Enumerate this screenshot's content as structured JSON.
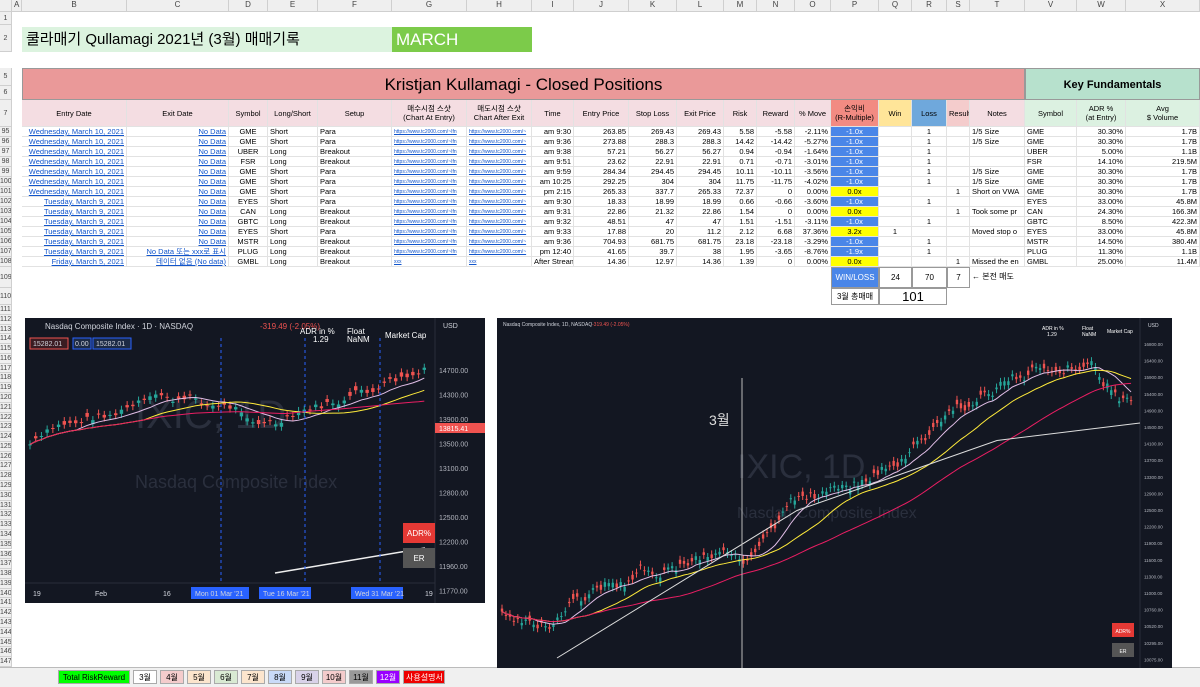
{
  "sheet": {
    "column_letters": [
      "A",
      "B",
      "C",
      "D",
      "E",
      "F",
      "G",
      "H",
      "I",
      "J",
      "K",
      "L",
      "M",
      "N",
      "O",
      "P",
      "Q",
      "R",
      "S",
      "T",
      "V",
      "W",
      "X"
    ],
    "row_numbers": [
      "1",
      "2",
      "5",
      "6",
      "7",
      "95",
      "96",
      "97",
      "98",
      "99",
      "100",
      "101",
      "102",
      "103",
      "104",
      "105",
      "106",
      "107",
      "108",
      "109",
      "110",
      "111",
      "112",
      "113",
      "114",
      "115",
      "116",
      "117",
      "118",
      "119",
      "120",
      "121",
      "122",
      "123",
      "124",
      "125",
      "126",
      "127",
      "128",
      "129",
      "130",
      "131",
      "132",
      "133",
      "134",
      "135",
      "136",
      "137",
      "138",
      "139",
      "140",
      "141",
      "142",
      "143",
      "144",
      "145",
      "146",
      "147"
    ],
    "title": "쿨라매기 Qullamagi 2021년 (3월) 매매기록",
    "month": "MARCH",
    "table_title": "Kristjan Kullamagi - Closed Positions",
    "fundamentals_title": "Key Fundamentals",
    "headers": [
      [
        "Entry Date"
      ],
      [
        "Exit Date"
      ],
      [
        "Symbol"
      ],
      [
        "Long/Short"
      ],
      [
        "Setup"
      ],
      [
        "매수시점 스샷",
        "(Chart At Entry)"
      ],
      [
        "매도시점 스샷",
        "Chart After Exit"
      ],
      [
        "Time"
      ],
      [
        "Entry Price"
      ],
      [
        "Stop Loss"
      ],
      [
        "Exit Price"
      ],
      [
        "Risk"
      ],
      [
        "Reward"
      ],
      [
        "% Move"
      ],
      [
        "손익비",
        "(R-Multiple)"
      ],
      [
        "Win"
      ],
      [
        "Loss"
      ],
      [
        "Result"
      ],
      [
        "Notes"
      ],
      [
        "Symbol"
      ],
      [
        "ADR %",
        "(at Entry)"
      ],
      [
        "Avg",
        "$ Volume"
      ]
    ],
    "rows": [
      {
        "entry": "Wednesday, March 10, 2021",
        "exit": "No Data",
        "symbol": "GME",
        "side": "Short",
        "setup": "Para",
        "shot_entry": "https://www.tc2000.com/~Ifn",
        "shot_exit": "https://www.tc2000.com/~",
        "time": "am 9:30",
        "entry_price": "263.85",
        "stop": "269.43",
        "exit_price": "269.43",
        "risk": "5.58",
        "reward": "-5.58",
        "move": "-2.11%",
        "r": "-1.0x",
        "loss": "1",
        "notes": "1/5 Size",
        "f_symbol": "GME",
        "adr": "30.30%",
        "volume": "1.7B"
      },
      {
        "entry": "Wednesday, March 10, 2021",
        "exit": "No Data",
        "symbol": "GME",
        "side": "Short",
        "setup": "Para",
        "shot_entry": "https://www.tc2000.com/~Ifn",
        "shot_exit": "https://www.tc2000.com/~",
        "time": "am 9:36",
        "entry_price": "273.88",
        "stop": "288.3",
        "exit_price": "288.3",
        "risk": "14.42",
        "reward": "-14.42",
        "move": "-5.27%",
        "r": "-1.0x",
        "loss": "1",
        "notes": "1/5 Size",
        "f_symbol": "GME",
        "adr": "30.30%",
        "volume": "1.7B"
      },
      {
        "entry": "Wednesday, March 10, 2021",
        "exit": "No Data",
        "symbol": "UBER",
        "side": "Long",
        "setup": "Breakout",
        "shot_entry": "https://www.tc2000.com/~Ifn",
        "shot_exit": "https://www.tc2000.com/~",
        "time": "am 9:38",
        "entry_price": "57.21",
        "stop": "56.27",
        "exit_price": "56.27",
        "risk": "0.94",
        "reward": "-0.94",
        "move": "-1.64%",
        "r": "-1.0x",
        "loss": "1",
        "f_symbol": "UBER",
        "adr": "5.00%",
        "volume": "1.1B"
      },
      {
        "entry": "Wednesday, March 10, 2021",
        "exit": "No Data",
        "symbol": "FSR",
        "side": "Long",
        "setup": "Breakout",
        "shot_entry": "https://www.tc2000.com/~Ifn",
        "shot_exit": "https://www.tc2000.com/~",
        "time": "am 9:51",
        "entry_price": "23.62",
        "stop": "22.91",
        "exit_price": "22.91",
        "risk": "0.71",
        "reward": "-0.71",
        "move": "-3.01%",
        "r": "-1.0x",
        "loss": "1",
        "f_symbol": "FSR",
        "adr": "14.10%",
        "volume": "219.5M"
      },
      {
        "entry": "Wednesday, March 10, 2021",
        "exit": "No Data",
        "symbol": "GME",
        "side": "Short",
        "setup": "Para",
        "shot_entry": "https://www.tc2000.com/~Ifn",
        "shot_exit": "https://www.tc2000.com/~",
        "time": "am 9:59",
        "entry_price": "284.34",
        "stop": "294.45",
        "exit_price": "294.45",
        "risk": "10.11",
        "reward": "-10.11",
        "move": "-3.56%",
        "r": "-1.0x",
        "loss": "1",
        "notes": "1/5 Size",
        "f_symbol": "GME",
        "adr": "30.30%",
        "volume": "1.7B"
      },
      {
        "entry": "Wednesday, March 10, 2021",
        "exit": "No Data",
        "symbol": "GME",
        "side": "Short",
        "setup": "Para",
        "shot_entry": "https://www.tc2000.com/~Ifn",
        "shot_exit": "https://www.tc2000.com/~",
        "time": "am 10:25",
        "entry_price": "292.25",
        "stop": "304",
        "exit_price": "304",
        "risk": "11.75",
        "reward": "-11.75",
        "move": "-4.02%",
        "r": "-1.0x",
        "loss": "1",
        "notes": "1/5 Size",
        "f_symbol": "GME",
        "adr": "30.30%",
        "volume": "1.7B"
      },
      {
        "entry": "Wednesday, March 10, 2021",
        "exit": "No Data",
        "symbol": "GME",
        "side": "Short",
        "setup": "Para",
        "shot_entry": "https://www.tc2000.com/~Ifn",
        "shot_exit": "https://www.tc2000.com/~",
        "time": "pm 2:15",
        "entry_price": "265.33",
        "stop": "337.7",
        "exit_price": "265.33",
        "risk": "72.37",
        "reward": "0",
        "move": "0.00%",
        "r": "0.0x",
        "result": "1",
        "notes": "Short on VWA",
        "f_symbol": "GME",
        "adr": "30.30%",
        "volume": "1.7B"
      },
      {
        "entry": "Tuesday, March 9, 2021",
        "exit": "No Data",
        "symbol": "EYES",
        "side": "Short",
        "setup": "Para",
        "shot_entry": "https://www.tc2000.com/~Ifn",
        "shot_exit": "https://www.tc2000.com/~",
        "time": "am 9:30",
        "entry_price": "18.33",
        "stop": "18.99",
        "exit_price": "18.99",
        "risk": "0.66",
        "reward": "-0.66",
        "move": "-3.60%",
        "r": "-1.0x",
        "loss": "1",
        "f_symbol": "EYES",
        "adr": "33.00%",
        "volume": "45.8M"
      },
      {
        "entry": "Tuesday, March 9, 2021",
        "exit": "No Data",
        "symbol": "CAN",
        "side": "Long",
        "setup": "Breakout",
        "shot_entry": "https://www.tc2000.com/~Ifn",
        "shot_exit": "https://www.tc2000.com/~",
        "time": "am 9:31",
        "entry_price": "22.86",
        "stop": "21.32",
        "exit_price": "22.86",
        "risk": "1.54",
        "reward": "0",
        "move": "0.00%",
        "r": "0.0x",
        "result": "1",
        "notes": "Took some pr",
        "f_symbol": "CAN",
        "adr": "24.30%",
        "volume": "166.3M"
      },
      {
        "entry": "Tuesday, March 9, 2021",
        "exit": "No Data",
        "symbol": "GBTC",
        "side": "Long",
        "setup": "Breakout",
        "shot_entry": "https://www.tc2000.com/~Ifn",
        "shot_exit": "https://www.tc2000.com/~",
        "time": "am 9:32",
        "entry_price": "48.51",
        "stop": "47",
        "exit_price": "47",
        "risk": "1.51",
        "reward": "-1.51",
        "move": "-3.11%",
        "r": "-1.0x",
        "loss": "1",
        "f_symbol": "GBTC",
        "adr": "8.50%",
        "volume": "422.3M"
      },
      {
        "entry": "Tuesday, March 9, 2021",
        "exit": "No Data",
        "symbol": "EYES",
        "side": "Short",
        "setup": "Para",
        "shot_entry": "https://www.tc2000.com/~Ifn",
        "shot_exit": "https://www.tc2000.com/~",
        "time": "am 9:33",
        "entry_price": "17.88",
        "stop": "20",
        "exit_price": "11.2",
        "risk": "2.12",
        "reward": "6.68",
        "move": "37.36%",
        "r": "3.2x",
        "win": "1",
        "notes": "Moved stop o",
        "f_symbol": "EYES",
        "adr": "33.00%",
        "volume": "45.8M"
      },
      {
        "entry": "Tuesday, March 9, 2021",
        "exit": "No Data",
        "symbol": "MSTR",
        "side": "Long",
        "setup": "Breakout",
        "shot_entry": "https://www.tc2000.com/~Ifn",
        "shot_exit": "https://www.tc2000.com/~",
        "time": "am 9:36",
        "entry_price": "704.93",
        "stop": "681.75",
        "exit_price": "681.75",
        "risk": "23.18",
        "reward": "-23.18",
        "move": "-3.29%",
        "r": "-1.0x",
        "loss": "1",
        "f_symbol": "MSTR",
        "adr": "14.50%",
        "volume": "380.4M"
      },
      {
        "entry": "Tuesday, March 9, 2021",
        "exit": "No Data 또는 xxx로 표시",
        "symbol": "PLUG",
        "side": "Long",
        "setup": "Breakout",
        "shot_entry": "https://www.tc2000.com/~Ifn",
        "shot_exit": "https://www.tc2000.com/~",
        "time": "pm 12:40",
        "entry_price": "41.65",
        "stop": "39.7",
        "exit_price": "38",
        "risk": "1.95",
        "reward": "-3.65",
        "move": "-8.76%",
        "r": "-1.9x",
        "loss": "1",
        "f_symbol": "PLUG",
        "adr": "11.30%",
        "volume": "1.1B"
      },
      {
        "entry": "Friday, March 5, 2021",
        "exit": "데이터 없음 (No data)",
        "symbol": "GMBL",
        "side": "Long",
        "setup": "Breakout",
        "shot_entry": "xxx",
        "shot_exit": "xxx",
        "time": "After Stream",
        "entry_price": "14.36",
        "stop": "12.97",
        "exit_price": "14.36",
        "risk": "1.39",
        "reward": "0",
        "move": "0.00%",
        "r": "0.0x",
        "result": "1",
        "notes": "Missed the en",
        "f_symbol": "GMBL",
        "adr": "25.00%",
        "volume": "11.4M"
      }
    ],
    "summary": {
      "win_loss_label": "WIN/LOSS",
      "win": "24",
      "loss": "70",
      "result": "7",
      "result_note": "← 본전 매도",
      "total_label": "3월 총매매",
      "total": "101"
    },
    "tabs": [
      "Total RiskReward",
      "3월",
      "4월",
      "5월",
      "6월",
      "7월",
      "8월",
      "9월",
      "10월",
      "11월",
      "12월",
      "사용설명서"
    ]
  },
  "left_chart": {
    "title": "Nasdaq Composite Index · 1D · NASDAQ",
    "change": "-319.49 (-2.05%)",
    "price_boxes": [
      "15282.01",
      "0.00",
      "15282.01"
    ],
    "stats": [
      "ADR in %",
      "1.29",
      "Float",
      "NaNM",
      "Market Cap"
    ],
    "currency": "USD",
    "last": "13815.41",
    "watermark": [
      "IXIC, 1D",
      "Nasdaq Composite Index"
    ],
    "y_labels": [
      "14700.00",
      "14300.00",
      "13900.00",
      "13500.00",
      "13100.00",
      "12800.00",
      "12500.00",
      "12200.00",
      "11960.00",
      "11770.00"
    ],
    "x_labels": [
      "19",
      "Feb",
      "16",
      "Mon 01 Mar '21",
      "Tue 16 Mar '21",
      "Wed 31 Mar '21",
      "19"
    ],
    "buttons": [
      "ADR%",
      "ER"
    ]
  },
  "right_chart": {
    "title": "Nasdaq Composite Index, 1D, NASDAQ",
    "change": "-319.49 (-2.05%)",
    "stats": [
      "ADR in %",
      "1.29",
      "Float",
      "NaNM",
      "Market Cap"
    ],
    "currency": "USD",
    "annotation": "3월",
    "watermark": [
      "IXIC, 1D",
      "Nasdaq Composite Index"
    ],
    "y_labels": [
      "16800.00",
      "16400.00",
      "15900.00",
      "15400.00",
      "14900.00",
      "14500.00",
      "14100.00",
      "13700.00",
      "13300.00",
      "12900.00",
      "12500.00",
      "12200.00",
      "11900.00",
      "11600.00",
      "11300.00",
      "11000.00",
      "10760.00",
      "10520.00",
      "10295.00",
      "10075.00"
    ],
    "buttons": [
      "ADR%",
      "ER"
    ]
  }
}
